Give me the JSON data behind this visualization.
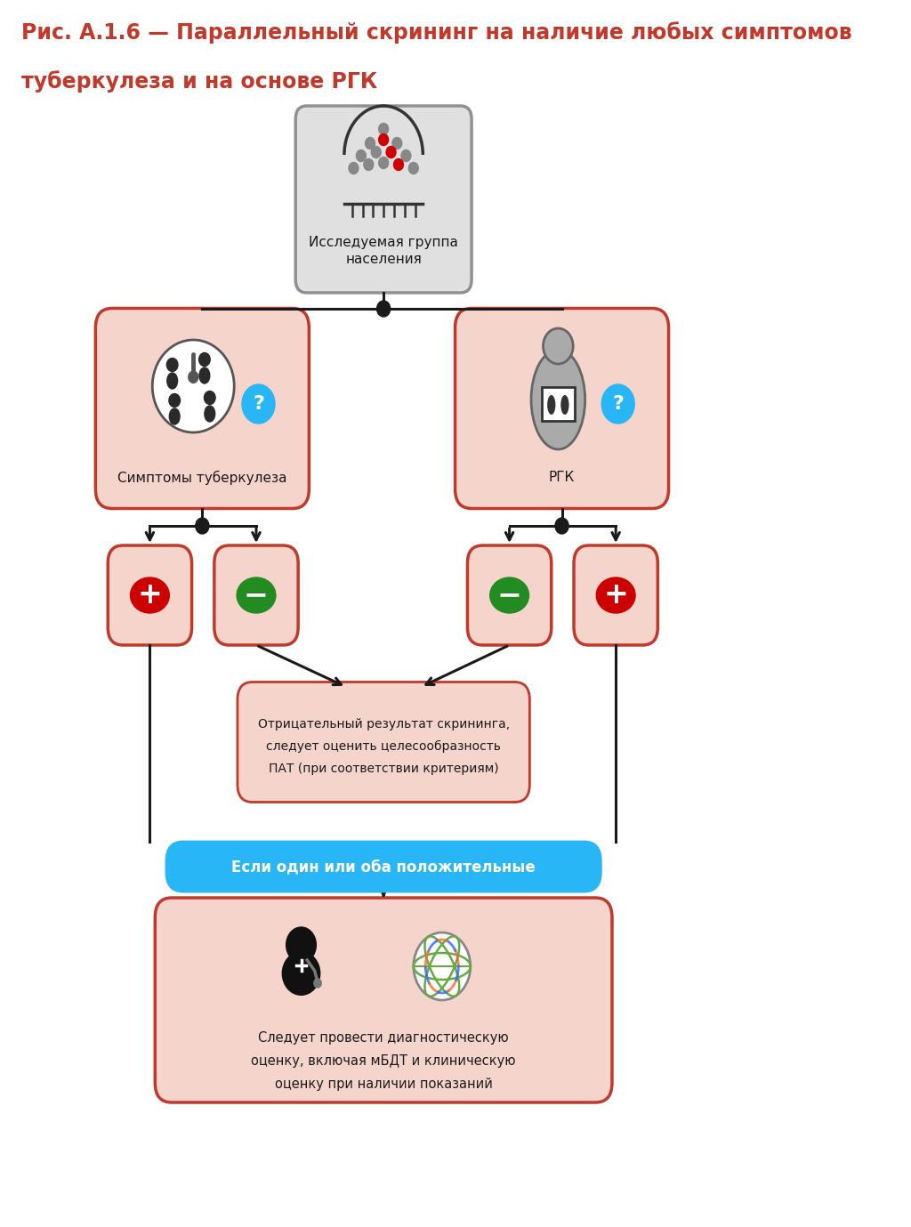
{
  "title_line1": "Рис. А.1.6 — Параллельный скрининг на наличие любых симптомов",
  "title_line2": "туберкулеза и на основе РГК",
  "title_color": "#C0392B",
  "title_fontsize": 17,
  "bg_color": "#FFFFFF",
  "box_salmon": "#F5D5CB",
  "box_salmon_border": "#C0392B",
  "box_gray": "#E0E0E0",
  "box_gray_border": "#909090",
  "box_blue_fill": "#29B6F6",
  "arrow_color": "#1A1A1A",
  "dot_color": "#1A1A1A",
  "red_circle": "#CC0000",
  "green_circle": "#228B22",
  "question_blue": "#29B6F6",
  "text_color": "#1A1A1A",
  "pop_label": "Исследуемая группа\nнаселения",
  "sym_label": "Симптомы туберкулеза",
  "cxr_label": "РГК",
  "neg_label1": "Отрицательный результат скрининга,",
  "neg_label2": "следует оценить целесообразность",
  "neg_label3": "ПАТ (при соответствии критериям)",
  "banner_label": "Если один или оба положительные",
  "diag_label1": "Следует провести диагностическую",
  "diag_label2": "оценку, включая мБДТ и клиническую",
  "diag_label3": "оценку при наличии показаний"
}
